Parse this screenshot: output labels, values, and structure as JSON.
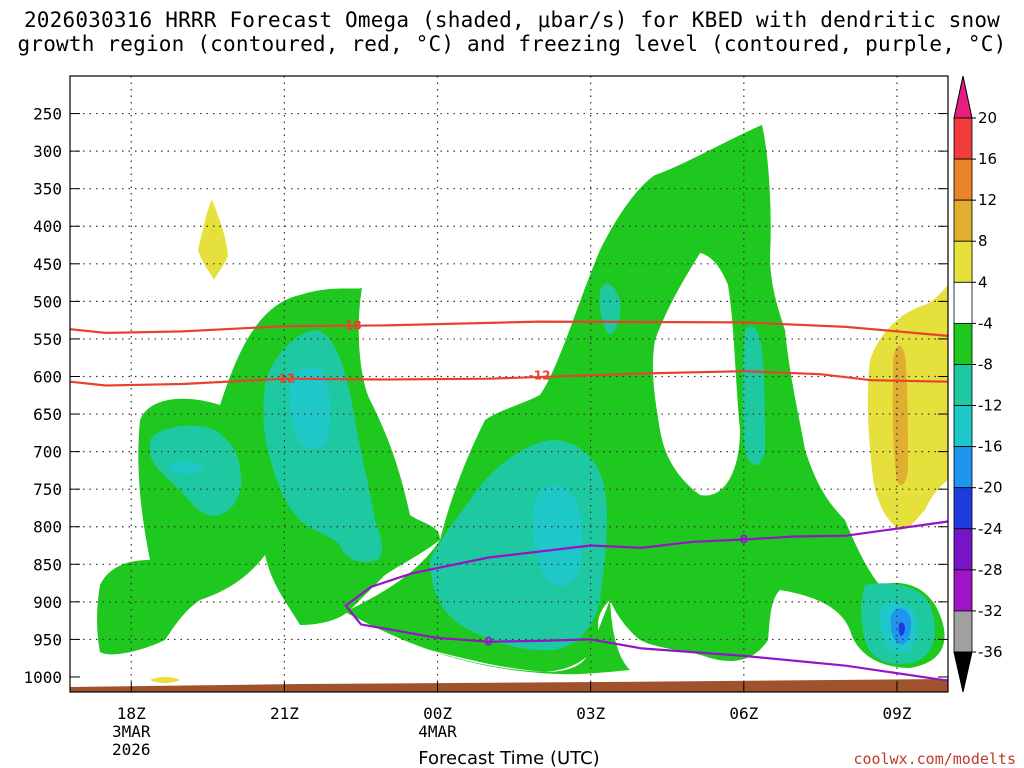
{
  "title_line1": "2026030316 HRRR Forecast Omega (shaded, μbar/s) for KBED with dendritic snow",
  "title_line2": "growth region (contoured, red, °C) and freezing level (contoured, purple, °C)",
  "credit": "coolwx.com/modelts",
  "chart_data": {
    "type": "heatmap",
    "xlabel": "Forecast Time (UTC)",
    "x_ticks": [
      {
        "hour": 18,
        "label": "18Z",
        "sub1": "3MAR",
        "sub2": "2026"
      },
      {
        "hour": 21,
        "label": "21Z",
        "sub1": "",
        "sub2": ""
      },
      {
        "hour": 24,
        "label": "00Z",
        "sub1": "4MAR",
        "sub2": ""
      },
      {
        "hour": 27,
        "label": "03Z",
        "sub1": "",
        "sub2": ""
      },
      {
        "hour": 30,
        "label": "06Z",
        "sub1": "",
        "sub2": ""
      },
      {
        "hour": 33,
        "label": "09Z",
        "sub1": "",
        "sub2": ""
      }
    ],
    "xlim": [
      16.8,
      34.0
    ],
    "y_ticks": [
      250,
      300,
      350,
      400,
      450,
      500,
      550,
      600,
      650,
      700,
      750,
      800,
      850,
      900,
      950,
      1000
    ],
    "ylim": [
      200,
      1020
    ],
    "colorbar": {
      "labels": [
        20,
        16,
        12,
        8,
        4,
        -4,
        -8,
        -12,
        -16,
        -20,
        -24,
        -28,
        -32,
        -36
      ],
      "colors": [
        "#f03c3c",
        "#e8852a",
        "#e0ae30",
        "#e6e03c",
        "#ffffff",
        "#1ec81e",
        "#1ec8a0",
        "#1ec8c8",
        "#1e96f0",
        "#1e3cdc",
        "#7814c8",
        "#a014c8",
        "#a0a0a0"
      ],
      "top_arrow": "#e61e82",
      "bottom_arrow": "#000000"
    },
    "contours": [
      {
        "name": "-18",
        "color": "#e8412f",
        "label": "-18",
        "points": [
          [
            16.8,
            537
          ],
          [
            17.5,
            542
          ],
          [
            19.0,
            540
          ],
          [
            21.0,
            533
          ],
          [
            23.0,
            532
          ],
          [
            26.0,
            527
          ],
          [
            30.0,
            528
          ],
          [
            32.0,
            534
          ],
          [
            34.0,
            546
          ]
        ]
      },
      {
        "name": "-12",
        "color": "#e8412f",
        "label": "-12",
        "points": [
          [
            16.8,
            607
          ],
          [
            17.5,
            612
          ],
          [
            19.0,
            610
          ],
          [
            21.0,
            603
          ],
          [
            23.0,
            604
          ],
          [
            25.0,
            603
          ],
          [
            28.0,
            596
          ],
          [
            30.0,
            593
          ],
          [
            31.5,
            597
          ],
          [
            32.5,
            605
          ],
          [
            34.0,
            607
          ]
        ]
      },
      {
        "name": "0",
        "color": "#9614c8",
        "label": "0",
        "points": [
          [
            22.2,
            905
          ],
          [
            22.7,
            880
          ],
          [
            23.5,
            862
          ],
          [
            25.0,
            841
          ],
          [
            27.0,
            825
          ],
          [
            28.0,
            828
          ],
          [
            29.0,
            820
          ],
          [
            30.0,
            817
          ],
          [
            31.0,
            813
          ],
          [
            32.0,
            812
          ],
          [
            34.0,
            793
          ]
        ],
        "lower": [
          [
            22.2,
            905
          ],
          [
            22.5,
            930
          ],
          [
            24.0,
            948
          ],
          [
            25.0,
            953
          ],
          [
            26.0,
            952
          ],
          [
            27.0,
            950
          ],
          [
            28.0,
            962
          ],
          [
            30.0,
            972
          ],
          [
            32.0,
            985
          ],
          [
            34.0,
            1005
          ]
        ]
      }
    ]
  }
}
